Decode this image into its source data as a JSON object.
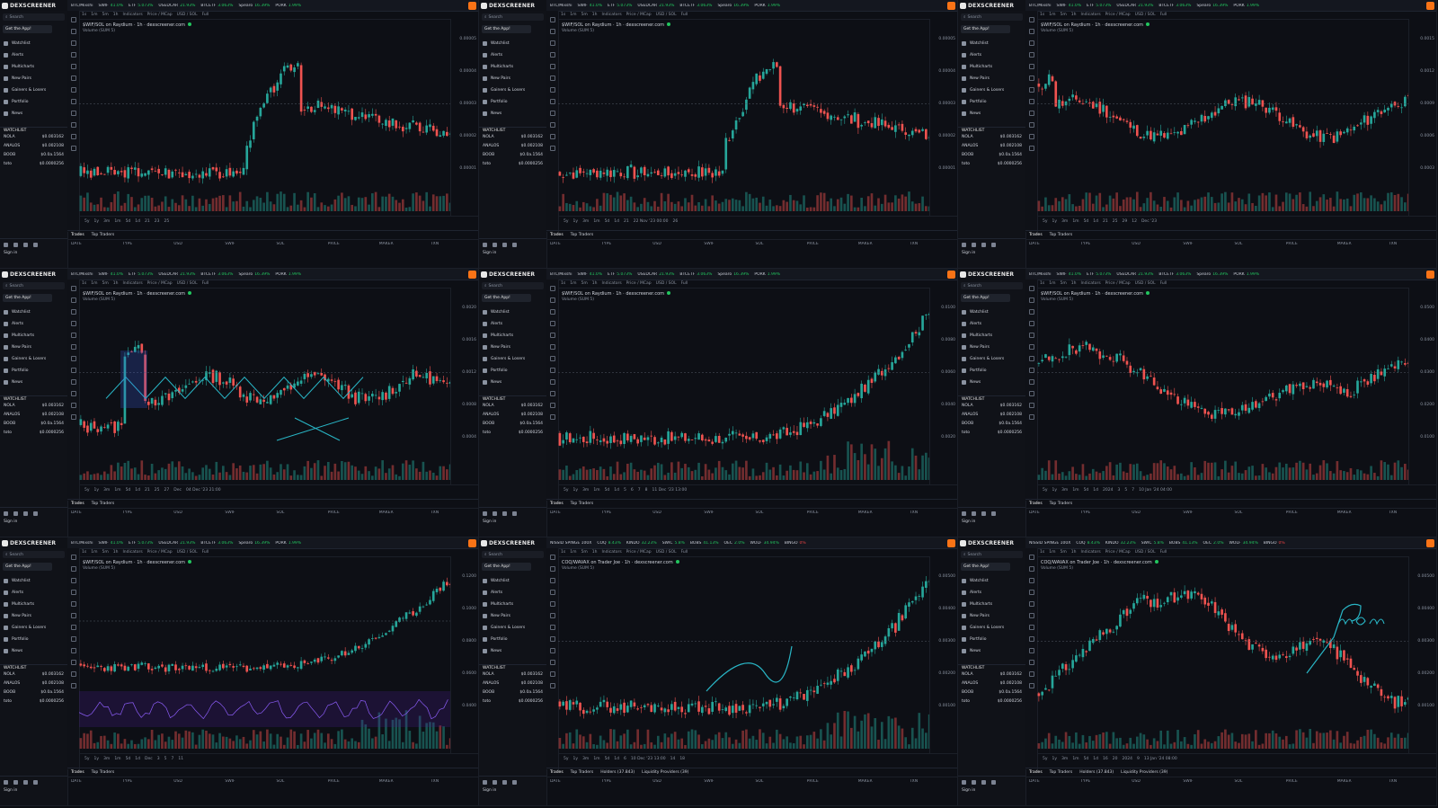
{
  "brand": "DEXSCREENER",
  "colors": {
    "bg": "#0d0f15",
    "up": "#22c55e",
    "down": "#ef4444",
    "teal": "#26a69a",
    "red": "#ef5350",
    "drawing": "#29b6c6",
    "accent": "#f97316"
  },
  "ticker": [
    {
      "sym": "BTC/Mixshi",
      "pct": ""
    },
    {
      "sym": "SWIF",
      "pct": "41.0%"
    },
    {
      "sym": "ETF",
      "pct": "5.073%"
    },
    {
      "sym": "USEDCAR",
      "pct": "21.93%"
    },
    {
      "sym": "BTCETF",
      "pct": "3.063%"
    },
    {
      "sym": "Spearo",
      "pct": "16.39%"
    },
    {
      "sym": "PORK",
      "pct": "1.99%"
    }
  ],
  "ticker_alt": [
    {
      "sym": "NISSID SPINGE 100X",
      "pct": ""
    },
    {
      "sym": "COQ",
      "pct": "8.43%"
    },
    {
      "sym": "KINDO",
      "pct": "32.23%"
    },
    {
      "sym": "SWIC",
      "pct": "5.8%"
    },
    {
      "sym": "BOBS",
      "pct": "41.13%"
    },
    {
      "sym": "OEC",
      "pct": "2.0%"
    },
    {
      "sym": "WOLF",
      "pct": "34.94%"
    },
    {
      "sym": "BINGO",
      "pct": "0%"
    }
  ],
  "sidebar": {
    "search_placeholder": "Search",
    "get_app": "Get the App!",
    "nav": [
      "Watchlist",
      "Alerts",
      "Multicharts",
      "New Pairs",
      "Gainers & Losers",
      "Portfolio",
      "News"
    ],
    "watchlist_label": "WATCHLIST",
    "watchlist": [
      {
        "sym": "NOLA",
        "price": "$0.003162"
      },
      {
        "sym": "ANALOS",
        "price": "$0.002108"
      },
      {
        "sym": "BOOB",
        "price": "$0.0a.1564"
      },
      {
        "sym": "toto",
        "price": "$0.0000256"
      }
    ],
    "sign_in": "Sign in"
  },
  "chart": {
    "toolbar": [
      "1s",
      "1m",
      "5m",
      "1h",
      "Indicators",
      "Price / MCap",
      "USD / SOL",
      "Full"
    ],
    "timeframes": [
      "5y",
      "1y",
      "3m",
      "1m",
      "5d",
      "1d"
    ],
    "volume_label": "Volume (SUM 5)"
  },
  "bottom": {
    "tabs": [
      "Trades",
      "Top Traders"
    ],
    "tabs_ext": [
      "Trades",
      "Top Traders",
      "Holders (37.843)",
      "Liquidity Providers (39)"
    ],
    "columns": [
      "DATE",
      "TYPE",
      "USD",
      "SWIF",
      "SOL",
      "PRICE",
      "MAKER",
      "TXN"
    ]
  },
  "panels": [
    {
      "pair": "$WIF/SOL on Raydium · 1h · dexscreener.com",
      "seed": 3,
      "shape": "spike_mid",
      "ylabels": [
        "0.00005",
        "0.00004",
        "0.00003",
        "0.00002",
        "0.00001"
      ],
      "xlabels": [
        "21",
        "23",
        "25"
      ],
      "drawing": "none",
      "alt": false
    },
    {
      "pair": "$WIF/SOL on Raydium · 1h · dexscreener.com",
      "seed": 7,
      "shape": "spike_mid",
      "ylabels": [
        "0.00005",
        "0.00004",
        "0.00003",
        "0.00002",
        "0.00001"
      ],
      "xlabels": [
        "21",
        "22 Nov '23 00:00",
        "26"
      ],
      "drawing": "none",
      "alt": false
    },
    {
      "pair": "$WIF/SOL on Raydium · 1h · dexscreener.com",
      "seed": 11,
      "shape": "flat",
      "ylabels": [
        "0.0015",
        "0.0012",
        "0.0009",
        "0.0006",
        "0.0003"
      ],
      "xlabels": [
        "21",
        "25",
        "29",
        "12",
        "Dec '23"
      ],
      "drawing": "none",
      "alt": false
    },
    {
      "pair": "$WIF/SOL on Raydium · 1h · dexscreener.com",
      "seed": 13,
      "shape": "drawn_flat",
      "ylabels": [
        "0.0020",
        "0.0016",
        "0.0012",
        "0.0008",
        "0.0004"
      ],
      "xlabels": [
        "21",
        "25",
        "27",
        "Dec",
        "04 Dec '23 21:00"
      ],
      "drawing": "zigzag",
      "alt": false
    },
    {
      "pair": "$WIF/SOL on Raydium · 1h · dexscreener.com",
      "seed": 17,
      "shape": "rise_end",
      "ylabels": [
        "0.0100",
        "0.0080",
        "0.0060",
        "0.0040",
        "0.0020"
      ],
      "xlabels": [
        "5",
        "6",
        "7",
        "8",
        "11 Dec '23 13:00"
      ],
      "drawing": "none",
      "alt": false
    },
    {
      "pair": "$WIF/SOL on Raydium · 1h · dexscreener.com",
      "seed": 19,
      "shape": "wave",
      "ylabels": [
        "0.0500",
        "0.0400",
        "0.0300",
        "0.0200",
        "0.0100"
      ],
      "xlabels": [
        "2024",
        "3",
        "5",
        "7",
        "10 Jan '24 04:00"
      ],
      "drawing": "none",
      "alt": false
    },
    {
      "pair": "$WIF/SOL on Raydium · 1h · dexscreener.com",
      "seed": 23,
      "shape": "rise_end",
      "ylabels": [
        "0.1200",
        "0.1000",
        "0.0800",
        "0.0600",
        "0.0400"
      ],
      "xlabels": [
        "Dec",
        "3",
        "5",
        "7",
        "11"
      ],
      "drawing": "rsi",
      "alt": false
    },
    {
      "pair": "COQ/WAVAX on Trader Joe · 1h · dexscreener.com",
      "seed": 29,
      "shape": "rise_end",
      "ylabels": [
        "0.00500",
        "0.00400",
        "0.00300",
        "0.00200",
        "0.00100"
      ],
      "xlabels": [
        "6",
        "10 Dec '23 13:00",
        "14",
        "18"
      ],
      "drawing": "curve",
      "alt": true
    },
    {
      "pair": "COQ/WAVAX on Trader Joe · 1h · dexscreener.com",
      "seed": 31,
      "shape": "peak_then_drop",
      "ylabels": [
        "0.00500",
        "0.00400",
        "0.00300",
        "0.00200",
        "0.00100"
      ],
      "xlabels": [
        "16",
        "20",
        "2024",
        "9",
        "13 Jan '24 08:00"
      ],
      "drawing": "mom",
      "alt": true
    }
  ]
}
